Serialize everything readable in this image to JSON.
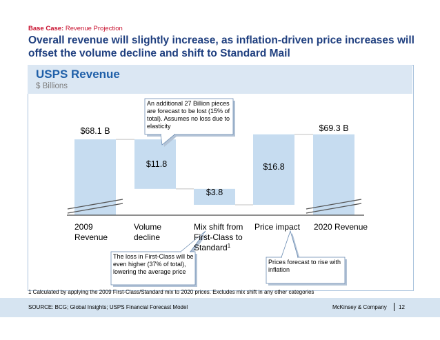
{
  "header": {
    "case_label": "Base Case:",
    "case_value": "Revenue Projection",
    "headline": "Overall revenue will slightly increase, as inflation-driven price increases will offset the volume decline and shift to Standard Mail"
  },
  "panel": {
    "title": "USPS Revenue",
    "subtitle": "$ Billions"
  },
  "chart_data": {
    "type": "bar",
    "subtype": "waterfall",
    "categories": [
      "2009 Revenue",
      "Volume decline",
      "Mix shift from First-Class to Standard",
      "Price impact",
      "2020 Revenue"
    ],
    "category_lines": [
      [
        "2009",
        "Revenue"
      ],
      [
        "Volume",
        "decline"
      ],
      [
        "Mix shift from",
        "First-Class to",
        "Standard"
      ],
      [
        "Price impact"
      ],
      [
        "2020 Revenue"
      ]
    ],
    "category_superscript": [
      "",
      "",
      "1",
      "",
      ""
    ],
    "values": [
      68.1,
      -11.8,
      -3.8,
      16.8,
      69.3
    ],
    "kinds": [
      "total",
      "decrease",
      "decrease",
      "increase",
      "total"
    ],
    "data_labels": [
      "$68.1 B",
      "$11.8",
      "$3.8",
      "$16.8",
      "$69.3 B"
    ],
    "axis_break": true,
    "bar_color": "#c6dcf0",
    "legend": "none",
    "grid": false
  },
  "callouts": {
    "volume": "An additional 27 Billion pieces are forecast to be lost (15% of total). Assumes no loss due to elasticity",
    "first_class": "The loss in First-Class will be even higher (37% of total), lowering the average price",
    "price": "Prices forecast to rise with inflation"
  },
  "footnote": "1 Calculated by applying the 2009 First-Class/Standard mix to 2020 prices. Excludes mix shift in any other categories",
  "footer": {
    "source": "SOURCE: BCG; Global Insights; USPS Financial Forecast Model",
    "brand": "McKinsey & Company",
    "page": "12"
  },
  "colors": {
    "headline": "#1f3f7f",
    "accent": "#c8102e",
    "panel_header": "#dbe7f3",
    "footer": "#d6e4f1"
  }
}
